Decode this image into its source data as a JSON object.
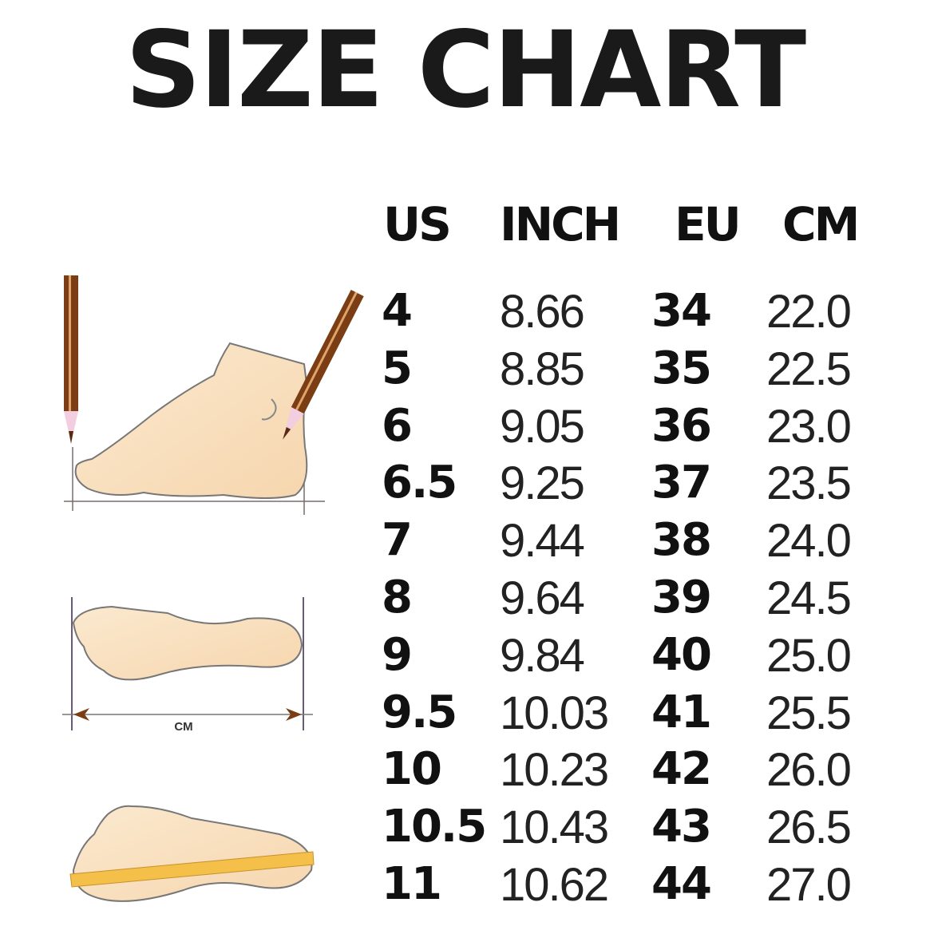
{
  "title": "SIZE CHART",
  "illustration": {
    "measure_label": "CM"
  },
  "chart_data": {
    "type": "table",
    "title": "SIZE CHART",
    "columns": [
      "US",
      "INCH",
      "EU",
      "CM"
    ],
    "rows": [
      [
        "4",
        "8.66",
        "34",
        "22.0"
      ],
      [
        "5",
        "8.85",
        "35",
        "22.5"
      ],
      [
        "6",
        "9.05",
        "36",
        "23.0"
      ],
      [
        "6.5",
        "9.25",
        "37",
        "23.5"
      ],
      [
        "7",
        "9.44",
        "38",
        "24.0"
      ],
      [
        "8",
        "9.64",
        "39",
        "24.5"
      ],
      [
        "9",
        "9.84",
        "40",
        "25.0"
      ],
      [
        "9.5",
        "10.03",
        "41",
        "25.5"
      ],
      [
        "10",
        "10.23",
        "42",
        "26.0"
      ],
      [
        "10.5",
        "10.43",
        "43",
        "26.5"
      ],
      [
        "11",
        "10.62",
        "44",
        "27.0"
      ]
    ]
  }
}
